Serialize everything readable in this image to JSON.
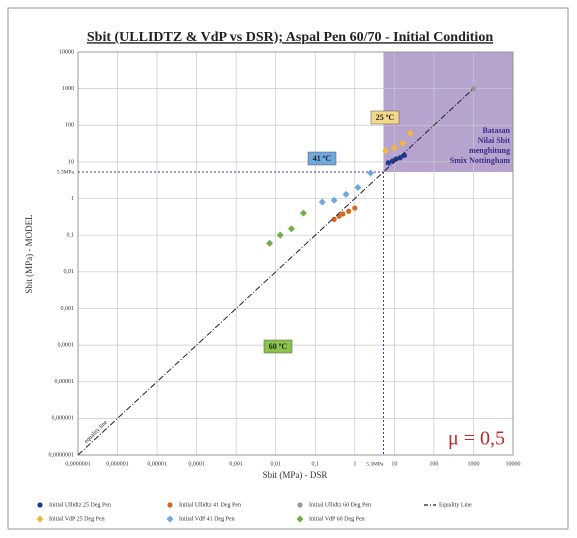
{
  "chart_data": {
    "type": "scatter",
    "title": "Sbit (ULLIDTZ & VdP vs DSR); Aspal Pen 60/70 - Initial Condition",
    "xlabel": "Sbit (MPa) - DSR",
    "ylabel": "Sbit (MPa) - MODEL",
    "log_x": true,
    "log_y": true,
    "grid": true,
    "legend": "bottom",
    "xlim": [
      1e-07,
      10000
    ],
    "ylim": [
      1e-07,
      10000
    ],
    "xticks": [
      {
        "value": 1e-07,
        "label": "0,0000001"
      },
      {
        "value": 1e-06,
        "label": "0,000001"
      },
      {
        "value": 1e-05,
        "label": "0,00001"
      },
      {
        "value": 0.0001,
        "label": "0,0001"
      },
      {
        "value": 0.001,
        "label": "0,001"
      },
      {
        "value": 0.01,
        "label": "0,01"
      },
      {
        "value": 0.1,
        "label": "0,1"
      },
      1,
      10,
      100,
      1000,
      10000
    ],
    "yticks": [
      {
        "value": 1e-07,
        "label": "0,0000001"
      },
      {
        "value": 1e-06,
        "label": "0,000001"
      },
      {
        "value": 1e-05,
        "label": "0,00001"
      },
      {
        "value": 0.0001,
        "label": "0,0001"
      },
      {
        "value": 0.001,
        "label": "0,001"
      },
      {
        "value": 0.01,
        "label": "0,01"
      },
      {
        "value": 0.1,
        "label": "0,1"
      },
      1,
      10,
      100,
      1000,
      10000
    ],
    "threshold": {
      "value": 5.3,
      "label": "5.3MPa",
      "color": "#7b5aa6"
    },
    "series": [
      {
        "name": "Initial Ullidtz 25 Deg Pen",
        "color": "#1f3a93",
        "marker": "circle",
        "x": [
          7,
          9,
          11,
          14,
          18
        ],
        "values": [
          9.5,
          10.5,
          12,
          13,
          15
        ]
      },
      {
        "name": "Initial Ullidtz 41 Deg Pen",
        "color": "#d2691e",
        "marker": "circle",
        "x": [
          0.3,
          0.4,
          0.5,
          0.7,
          1.0
        ],
        "values": [
          0.27,
          0.33,
          0.38,
          0.45,
          0.55
        ]
      },
      {
        "name": "Initial Ullidtz 60 Deg Pen",
        "color": "#999999",
        "marker": "circle",
        "x": [
          1000
        ],
        "values": [
          1000
        ]
      },
      {
        "name": "Equality Line",
        "color": "#222222",
        "marker": "line",
        "x": [
          1e-07,
          1000
        ],
        "values": [
          1e-07,
          1000
        ]
      },
      {
        "name": "Initial VdP 25 Deg Pen",
        "color": "#f0b840",
        "marker": "diamond",
        "x": [
          6,
          10,
          16,
          25
        ],
        "values": [
          20,
          24,
          32,
          60
        ]
      },
      {
        "name": "Initial VdP 41 Deg Pen",
        "color": "#6fa8dc",
        "marker": "diamond",
        "x": [
          0.15,
          0.3,
          0.6,
          1.2,
          2.5
        ],
        "values": [
          0.8,
          0.9,
          1.3,
          2,
          5
        ]
      },
      {
        "name": "Initial VdP 60 Deg Pen",
        "color": "#70ad47",
        "marker": "diamond",
        "x": [
          0.007,
          0.013,
          0.025,
          0.05
        ],
        "values": [
          0.06,
          0.1,
          0.15,
          0.4
        ]
      }
    ],
    "annotations": [
      {
        "text": "25 ºC",
        "color": "#f5d98a"
      },
      {
        "text": "41 ºC",
        "color": "#6fa8dc"
      },
      {
        "text": "60 ºC",
        "color": "#8bc34a"
      },
      {
        "lines": [
          "Batasan",
          "Nilai Sbit",
          "menghitung",
          "Smix Nottingham"
        ],
        "color": "#3b2a8a"
      },
      {
        "text": "equality line",
        "color": "#222222"
      },
      {
        "text": "μ = 0,5",
        "color": "#c0282d"
      }
    ]
  }
}
